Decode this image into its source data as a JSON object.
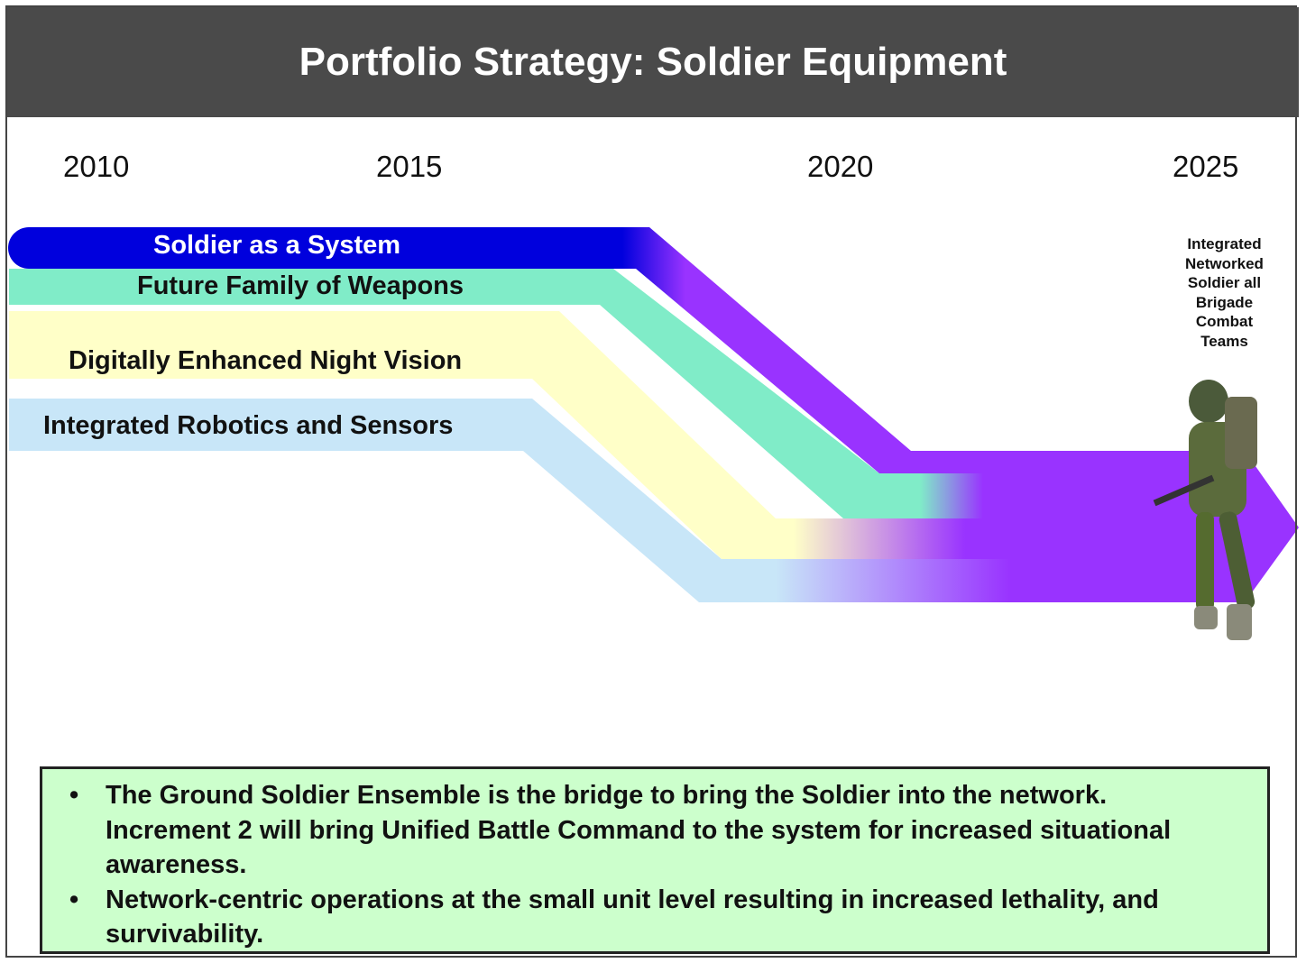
{
  "header": {
    "title": "Portfolio Strategy: Soldier Equipment"
  },
  "timeline": {
    "years": [
      "2010",
      "2015",
      "2020",
      "2025"
    ]
  },
  "streams": [
    {
      "label": "Soldier as a System"
    },
    {
      "label": "Future Family of Weapons"
    },
    {
      "label": "Digitally Enhanced Night Vision"
    },
    {
      "label": "Integrated Robotics and Sensors"
    }
  ],
  "endpoint": {
    "lines": [
      "Integrated",
      "Networked",
      "Soldier all",
      "Brigade",
      "Combat",
      "Teams"
    ]
  },
  "notes": {
    "bullets": [
      "The Ground Soldier Ensemble is the bridge to bring the Soldier into the network. Increment 2 will bring Unified Battle Command to the system for increased situational awareness.",
      "Network-centric operations at the small unit level resulting in increased lethality, and survivability."
    ]
  }
}
